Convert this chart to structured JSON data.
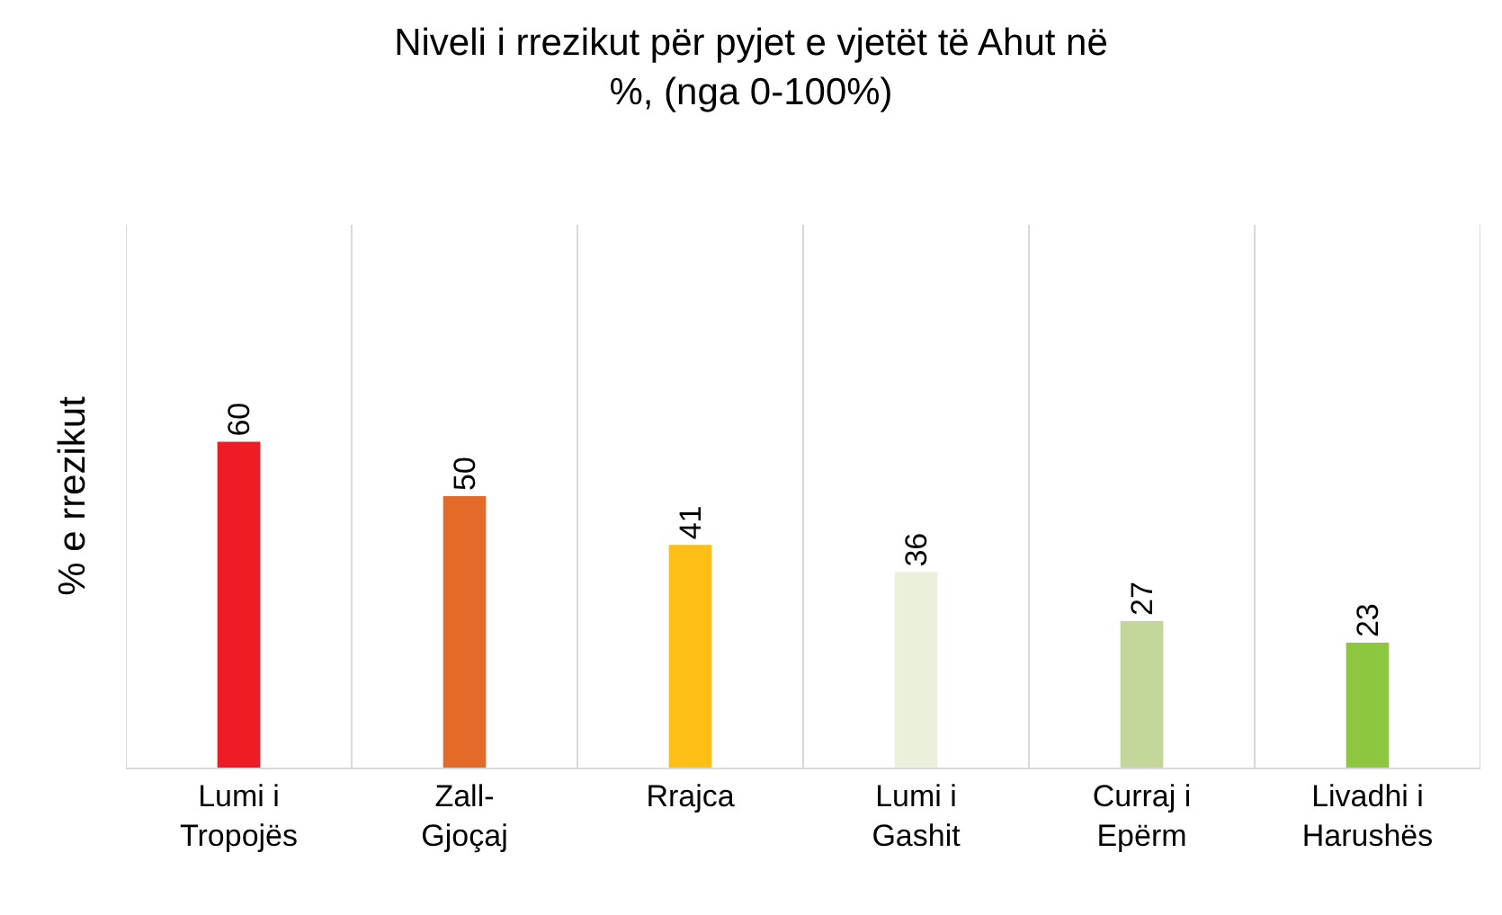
{
  "chart_data": {
    "type": "bar",
    "title": "Niveli i rrezikut për pyjet e vjetët të Ahut në\n%, (nga 0-100%)",
    "ylabel": "% e rrezikut",
    "categories": [
      "Lumi i\nTropojës",
      "Zall-\nGjoçaj",
      "Rrajca",
      "Lumi i\nGashit",
      "Curraj i\nEpërm",
      "Livadhi i\nHarushës"
    ],
    "values": [
      60,
      50,
      41,
      36,
      27,
      23
    ],
    "colors": [
      "#ee1c25",
      "#e46a2a",
      "#fdbf16",
      "#ebf0dc",
      "#c4d79b",
      "#8dc63f"
    ],
    "ylim": [
      0,
      100
    ],
    "data_labels": true,
    "grid": "x",
    "tick_labels": "x"
  }
}
